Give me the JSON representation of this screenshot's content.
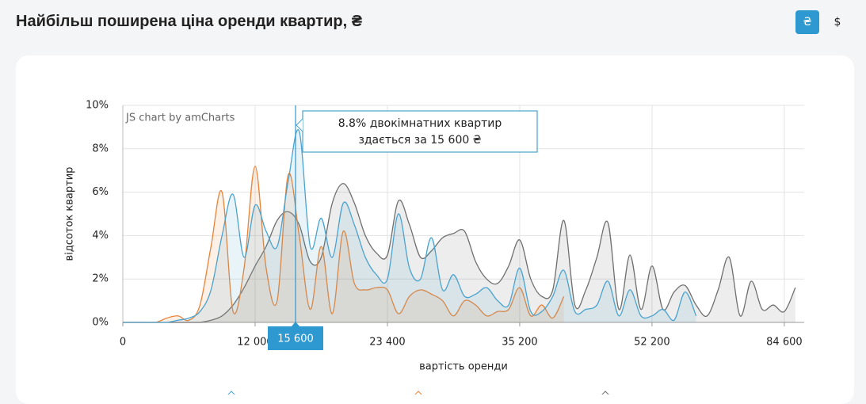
{
  "header": {
    "title": "Найбільш поширена ціна оренди квартир, ₴",
    "currency_buttons": [
      "₴",
      "$"
    ]
  },
  "chart_data": {
    "type": "area",
    "watermark": "JS chart by amCharts",
    "x_label": "вартість оренди",
    "y_label": "відсоток квартир",
    "tooltip": {
      "lines": [
        "8.8% двокімнатних квартир",
        "здається за 15 600 ₴"
      ],
      "cursor_label": "15 600"
    },
    "categories": [
      "0",
      null,
      null,
      null,
      null,
      null,
      null,
      null,
      null,
      null,
      null,
      null,
      "12 000",
      null,
      null,
      null,
      null,
      null,
      null,
      null,
      null,
      null,
      null,
      null,
      "23 400",
      null,
      null,
      null,
      null,
      null,
      null,
      null,
      null,
      null,
      null,
      null,
      "35 200",
      null,
      null,
      null,
      null,
      null,
      null,
      null,
      null,
      null,
      null,
      null,
      "52 200",
      null,
      null,
      null,
      null,
      null,
      null,
      null,
      null,
      null,
      null,
      null,
      "84 600",
      null
    ],
    "series": [
      {
        "color": "#6f6f6f",
        "values": [
          0,
          0,
          0,
          0,
          0,
          0,
          0,
          0,
          0.1,
          0.3,
          0.8,
          1.6,
          2.6,
          3.5,
          4.7,
          5.1,
          4.5,
          2.8,
          3.0,
          5.5,
          6.4,
          5.5,
          4.0,
          3.2,
          3.1,
          5.6,
          4.5,
          3.0,
          3.3,
          3.9,
          4.1,
          4.2,
          2.8,
          2.0,
          1.8,
          2.6,
          3.8,
          2.0,
          1.2,
          1.5,
          4.7,
          0.8,
          1.5,
          3.0,
          4.6,
          0.6,
          3.1,
          0.6,
          2.6,
          0.6,
          1.4,
          1.7,
          0.8,
          0.3,
          1.5,
          3.0,
          0.3,
          1.9,
          0.6,
          0.8,
          0.5,
          1.6
        ]
      },
      {
        "color": "#e8843a",
        "values": [
          0,
          0,
          0,
          0,
          0.2,
          0.3,
          0.1,
          0.8,
          3.5,
          6.0,
          0.5,
          2.5,
          7.2,
          2.5,
          1.0,
          6.8,
          4.0,
          0.6,
          3.5,
          0.4,
          4.2,
          1.8,
          1.5,
          1.6,
          1.5,
          0.4,
          1.2,
          1.5,
          1.3,
          1.0,
          0.3,
          1.0,
          0.8,
          0.3,
          0.5,
          0.6,
          1.6,
          0.3,
          0.8,
          0.2,
          1.2,
          null,
          null,
          null,
          null,
          null,
          null,
          null,
          null,
          null,
          null,
          null,
          null,
          null,
          null,
          null,
          null,
          null,
          null,
          null,
          null,
          null
        ]
      },
      {
        "color": "#4aa3cf",
        "values": [
          0,
          0,
          0,
          0,
          0,
          0.1,
          0.2,
          0.5,
          1.5,
          4.0,
          5.9,
          3.0,
          5.4,
          4.2,
          3.5,
          6.5,
          8.8,
          3.5,
          4.8,
          3.0,
          5.5,
          4.5,
          3.0,
          2.2,
          2.0,
          5.0,
          2.5,
          2.0,
          3.9,
          1.5,
          2.2,
          1.2,
          1.3,
          1.6,
          1.0,
          0.8,
          2.5,
          0.5,
          0.5,
          1.2,
          2.4,
          0.5,
          0.6,
          0.8,
          1.9,
          0.3,
          1.5,
          0.3,
          0.3,
          0.6,
          0.1,
          1.4,
          0.3,
          null,
          null,
          null,
          null,
          null,
          null,
          null,
          null,
          null
        ]
      }
    ],
    "ylim": [
      0,
      10
    ],
    "yticks": [
      {
        "value": 0,
        "label": "0%"
      },
      {
        "value": 2,
        "label": "2%"
      },
      {
        "value": 4,
        "label": "4%"
      },
      {
        "value": 6,
        "label": "6%"
      },
      {
        "value": 8,
        "label": "8%"
      },
      {
        "value": 10,
        "label": "10%"
      }
    ],
    "grid": true
  }
}
